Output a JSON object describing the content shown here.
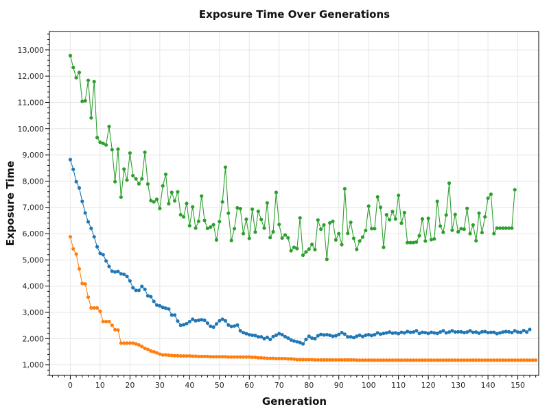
{
  "chart_data": {
    "type": "line",
    "title": "Exposure Time Over Generations",
    "xlabel": "Generation",
    "ylabel": "Exposure Time",
    "xlim": [
      -7,
      157
    ],
    "ylim": [
      600,
      13700
    ],
    "x_ticks": [
      0,
      10,
      20,
      30,
      40,
      50,
      60,
      70,
      80,
      90,
      100,
      110,
      120,
      130,
      140,
      150
    ],
    "x_tick_labels": [
      "0",
      "10",
      "20",
      "30",
      "40",
      "50",
      "60",
      "70",
      "80",
      "90",
      "100",
      "110",
      "120",
      "130",
      "140",
      "150"
    ],
    "y_ticks": [
      1000,
      2000,
      3000,
      4000,
      5000,
      6000,
      7000,
      8000,
      9000,
      10000,
      11000,
      12000,
      13000
    ],
    "y_tick_labels": [
      "1,000",
      "2,000",
      "3,000",
      "4,000",
      "5,000",
      "6,000",
      "7,000",
      "8,000",
      "9,000",
      "10,000",
      "11,000",
      "12,000",
      "13,000"
    ],
    "grid": true,
    "series": [
      {
        "color": "#1f77b4",
        "values": [
          8820,
          8450,
          7980,
          7740,
          7230,
          6790,
          6450,
          6200,
          5880,
          5500,
          5250,
          5200,
          4960,
          4750,
          4570,
          4540,
          4560,
          4470,
          4450,
          4370,
          4200,
          3940,
          3840,
          3840,
          3990,
          3880,
          3630,
          3600,
          3420,
          3280,
          3250,
          3190,
          3160,
          3130,
          2900,
          2900,
          2670,
          2510,
          2530,
          2570,
          2650,
          2740,
          2680,
          2700,
          2720,
          2700,
          2590,
          2470,
          2440,
          2560,
          2680,
          2740,
          2680,
          2520,
          2460,
          2480,
          2520,
          2300,
          2230,
          2190,
          2150,
          2130,
          2120,
          2070,
          2070,
          2000,
          2050,
          1970,
          2080,
          2130,
          2190,
          2150,
          2080,
          2020,
          1950,
          1910,
          1880,
          1850,
          1800,
          1970,
          2090,
          2020,
          2000,
          2110,
          2160,
          2140,
          2150,
          2130,
          2090,
          2110,
          2160,
          2230,
          2170,
          2070,
          2070,
          2040,
          2090,
          2130,
          2080,
          2130,
          2150,
          2120,
          2150,
          2220,
          2170,
          2200,
          2220,
          2250,
          2210,
          2220,
          2190,
          2240,
          2220,
          2270,
          2240,
          2250,
          2300,
          2200,
          2240,
          2230,
          2200,
          2240,
          2220,
          2200,
          2250,
          2300,
          2220,
          2250,
          2300,
          2250,
          2260,
          2260,
          2230,
          2250,
          2300,
          2240,
          2250,
          2210,
          2260,
          2270,
          2230,
          2240,
          2240,
          2190,
          2220,
          2250,
          2270,
          2260,
          2230,
          2300,
          2250,
          2240,
          2310,
          2250,
          2350
        ]
      },
      {
        "color": "#ff7f0e",
        "values": [
          5880,
          5420,
          5220,
          4660,
          4100,
          4080,
          3580,
          3170,
          3170,
          3170,
          3040,
          2650,
          2650,
          2650,
          2510,
          2340,
          2330,
          1830,
          1830,
          1830,
          1830,
          1830,
          1800,
          1760,
          1700,
          1630,
          1590,
          1530,
          1500,
          1460,
          1410,
          1380,
          1380,
          1370,
          1360,
          1350,
          1350,
          1340,
          1340,
          1340,
          1340,
          1330,
          1330,
          1320,
          1320,
          1320,
          1320,
          1310,
          1310,
          1310,
          1310,
          1310,
          1310,
          1300,
          1300,
          1300,
          1300,
          1300,
          1300,
          1300,
          1300,
          1290,
          1290,
          1270,
          1270,
          1260,
          1250,
          1250,
          1250,
          1240,
          1240,
          1240,
          1240,
          1230,
          1230,
          1220,
          1200,
          1200,
          1200,
          1200,
          1200,
          1200,
          1190,
          1190,
          1190,
          1190,
          1190,
          1190,
          1190,
          1190,
          1190,
          1190,
          1190,
          1190,
          1190,
          1190,
          1180,
          1180,
          1180,
          1180,
          1180,
          1180,
          1180,
          1180,
          1180,
          1180,
          1180,
          1180,
          1180,
          1180,
          1180,
          1180,
          1180,
          1180,
          1180,
          1180,
          1180,
          1180,
          1180,
          1180,
          1180,
          1180,
          1180,
          1180,
          1180,
          1180,
          1180,
          1180,
          1180,
          1180,
          1180,
          1180,
          1180,
          1180,
          1180,
          1180,
          1180,
          1180,
          1180,
          1180,
          1180,
          1180,
          1180,
          1180,
          1180,
          1180,
          1180,
          1180,
          1180,
          1180,
          1180,
          1180,
          1180,
          1180,
          1180,
          1180,
          1180
        ]
      },
      {
        "color": "#2ca02c",
        "values": [
          12780,
          12330,
          11940,
          12140,
          11040,
          11060,
          11840,
          10410,
          11790,
          9660,
          9480,
          9440,
          9380,
          10080,
          9200,
          7980,
          9220,
          7390,
          8460,
          8040,
          9070,
          8210,
          8090,
          7900,
          8090,
          9100,
          7890,
          7260,
          7210,
          7310,
          6960,
          7820,
          8260,
          7140,
          7570,
          7250,
          7590,
          6720,
          6640,
          7150,
          6300,
          7020,
          6210,
          6470,
          7430,
          6500,
          6200,
          6250,
          6340,
          5760,
          6460,
          7210,
          8530,
          6780,
          5740,
          6190,
          6980,
          6950,
          6000,
          6550,
          5820,
          6930,
          6060,
          6850,
          6540,
          6210,
          7170,
          5850,
          6070,
          7570,
          6350,
          5830,
          5950,
          5840,
          5350,
          5480,
          5430,
          6600,
          5180,
          5300,
          5410,
          5590,
          5390,
          6520,
          6170,
          6330,
          5020,
          6410,
          6470,
          5760,
          6000,
          5580,
          7710,
          6010,
          6430,
          5820,
          5400,
          5720,
          5870,
          6120,
          7050,
          6190,
          6190,
          7400,
          7000,
          5480,
          6720,
          6530,
          6840,
          6560,
          7460,
          6400,
          6800,
          5660,
          5660,
          5660,
          5680,
          5920,
          6560,
          5720,
          6580,
          5770,
          5800,
          7230,
          6290,
          6050,
          6710,
          7920,
          6130,
          6730,
          6070,
          6190,
          6170,
          6960,
          6000,
          6330,
          5730,
          6780,
          6040,
          6640,
          7350,
          7500,
          6000,
          6210,
          6210,
          6210,
          6210,
          6210,
          6210,
          7670
        ]
      }
    ]
  }
}
